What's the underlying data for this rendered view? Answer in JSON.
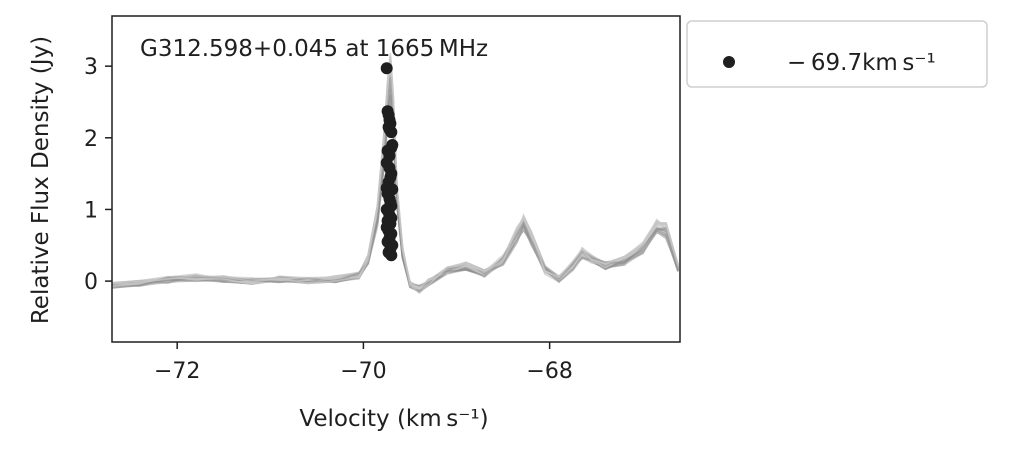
{
  "chart_data": {
    "type": "line",
    "title": "G312.598+0.045 at 1665 MHz",
    "xlabel": "Velocity (km s⁻¹)",
    "ylabel": "Relative Flux Density (Jy)",
    "xlim": [
      -72.7,
      -66.6
    ],
    "ylim": [
      -0.85,
      3.7
    ],
    "xticks": [
      -72,
      -70,
      -68
    ],
    "xtick_labels": [
      "−72",
      "−70",
      "−68"
    ],
    "yticks": [
      0,
      1,
      2,
      3
    ],
    "ytick_labels": [
      "0",
      "1",
      "2",
      "3"
    ],
    "legend_position": "outside-top-right",
    "colors": {
      "spectra": "#8c8c8c",
      "spectra_faint": "#c8c8c8",
      "points": "#1f1f1f"
    },
    "series": [
      {
        "name": "− 69.7km s⁻¹",
        "kind": "scatter",
        "x": [
          -69.75,
          -69.74,
          -69.73,
          -69.72,
          -69.71,
          -69.73,
          -69.72,
          -69.7,
          -69.69,
          -69.7,
          -69.74,
          -69.75,
          -69.72,
          -69.7,
          -69.71,
          -69.73,
          -69.75,
          -69.69,
          -69.74,
          -69.72,
          -69.71,
          -69.7,
          -69.75,
          -69.73,
          -69.72,
          -69.7,
          -69.74,
          -69.71,
          -69.75,
          -69.73,
          -69.7,
          -69.72,
          -69.74,
          -69.69,
          -69.71,
          -69.73,
          -69.7,
          -69.72
        ],
        "y": [
          2.97,
          2.37,
          2.32,
          2.25,
          2.2,
          2.15,
          2.12,
          2.08,
          1.9,
          1.86,
          1.82,
          1.65,
          1.58,
          1.5,
          1.45,
          1.38,
          1.3,
          1.28,
          1.22,
          1.15,
          1.1,
          1.05,
          1.0,
          0.96,
          0.92,
          0.88,
          0.84,
          0.8,
          0.75,
          0.7,
          0.66,
          0.6,
          0.55,
          0.5,
          0.45,
          0.4,
          0.36,
          1.75
        ]
      },
      {
        "name": "",
        "kind": "line",
        "x": [
          -72.7,
          -72.4,
          -72.1,
          -71.8,
          -71.5,
          -71.2,
          -70.9,
          -70.6,
          -70.3,
          -70.05,
          -69.95,
          -69.85,
          -69.78,
          -69.74,
          -69.71,
          -69.68,
          -69.64,
          -69.58,
          -69.5,
          -69.4,
          -69.3,
          -69.1,
          -68.9,
          -68.7,
          -68.5,
          -68.35,
          -68.28,
          -68.2,
          -68.05,
          -67.9,
          -67.75,
          -67.65,
          -67.55,
          -67.4,
          -67.2,
          -67.0,
          -66.85,
          -66.75,
          -66.62
        ],
        "y": [
          -0.05,
          -0.03,
          0.02,
          0.05,
          0.03,
          0.0,
          0.03,
          0.01,
          0.03,
          0.08,
          0.3,
          0.9,
          1.8,
          2.5,
          2.85,
          2.3,
          1.2,
          0.4,
          -0.05,
          -0.12,
          -0.02,
          0.15,
          0.2,
          0.1,
          0.3,
          0.65,
          0.82,
          0.6,
          0.15,
          0.03,
          0.22,
          0.4,
          0.3,
          0.22,
          0.28,
          0.45,
          0.75,
          0.7,
          0.18
        ]
      }
    ]
  }
}
